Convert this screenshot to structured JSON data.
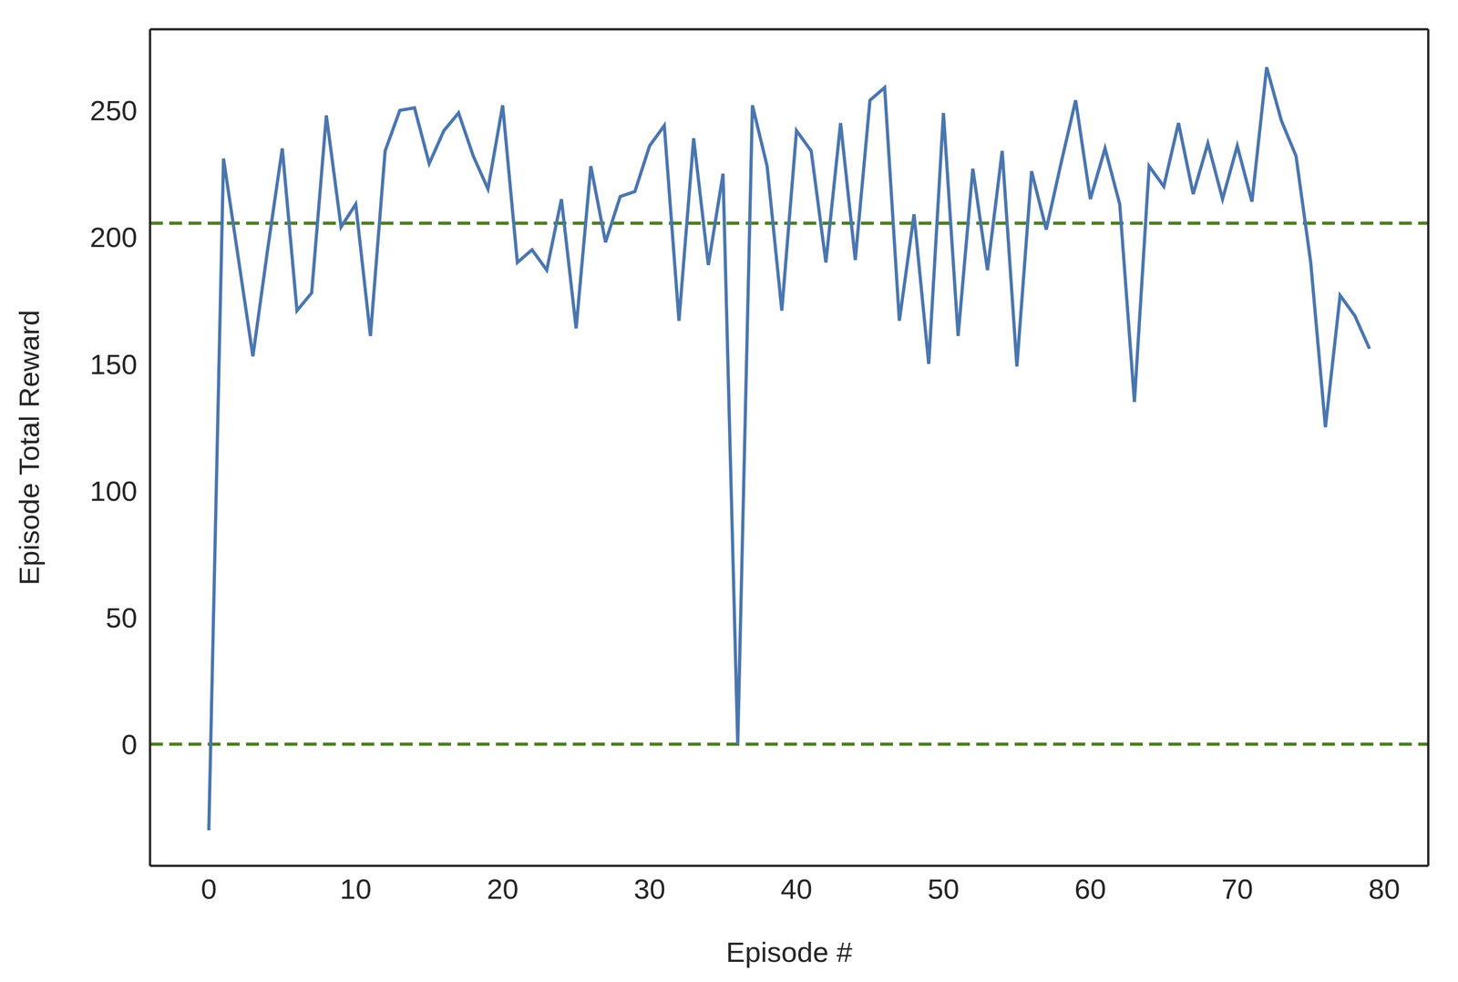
{
  "chart_data": {
    "type": "line",
    "x_label": "Episode #",
    "y_label": "Episode Total Reward",
    "x": [
      0,
      1,
      2,
      3,
      4,
      5,
      6,
      7,
      8,
      9,
      10,
      11,
      12,
      13,
      14,
      15,
      16,
      17,
      18,
      19,
      20,
      21,
      22,
      23,
      24,
      25,
      26,
      27,
      28,
      29,
      30,
      31,
      32,
      33,
      34,
      35,
      36,
      37,
      38,
      39,
      40,
      41,
      42,
      43,
      44,
      45,
      46,
      47,
      48,
      49,
      50,
      51,
      52,
      53,
      54,
      55,
      56,
      57,
      58,
      59,
      60,
      61,
      62,
      63,
      64,
      65,
      66,
      67,
      68,
      69,
      70,
      71,
      72,
      73,
      74,
      75,
      76,
      77,
      78,
      79
    ],
    "values": [
      -34,
      231,
      192,
      153,
      195,
      235,
      171,
      178,
      248,
      204,
      213,
      161,
      234,
      250,
      251,
      229,
      242,
      249,
      232,
      219,
      252,
      190,
      195,
      187,
      215,
      164,
      228,
      198,
      216,
      218,
      236,
      244,
      167,
      239,
      189,
      225,
      0,
      252,
      228,
      171,
      242,
      234,
      190,
      245,
      191,
      254,
      259,
      167,
      209,
      150,
      249,
      161,
      227,
      187,
      234,
      149,
      226,
      203,
      229,
      254,
      215,
      235,
      213,
      135,
      228,
      220,
      245,
      217,
      237,
      215,
      236,
      214,
      267,
      246,
      232,
      190,
      125,
      177,
      169,
      156
    ],
    "color": "#4a76b0",
    "xlim": [
      -4,
      83
    ],
    "xticks": [
      0,
      10,
      20,
      30,
      40,
      50,
      60,
      70,
      80
    ],
    "ylim": [
      -48,
      282
    ],
    "yticks": [
      0,
      50,
      100,
      150,
      200,
      250
    ],
    "grid": false,
    "hlines": {
      "values": [
        205.5,
        0
      ],
      "color": "#4c7d21",
      "line_style": "dashed"
    }
  }
}
